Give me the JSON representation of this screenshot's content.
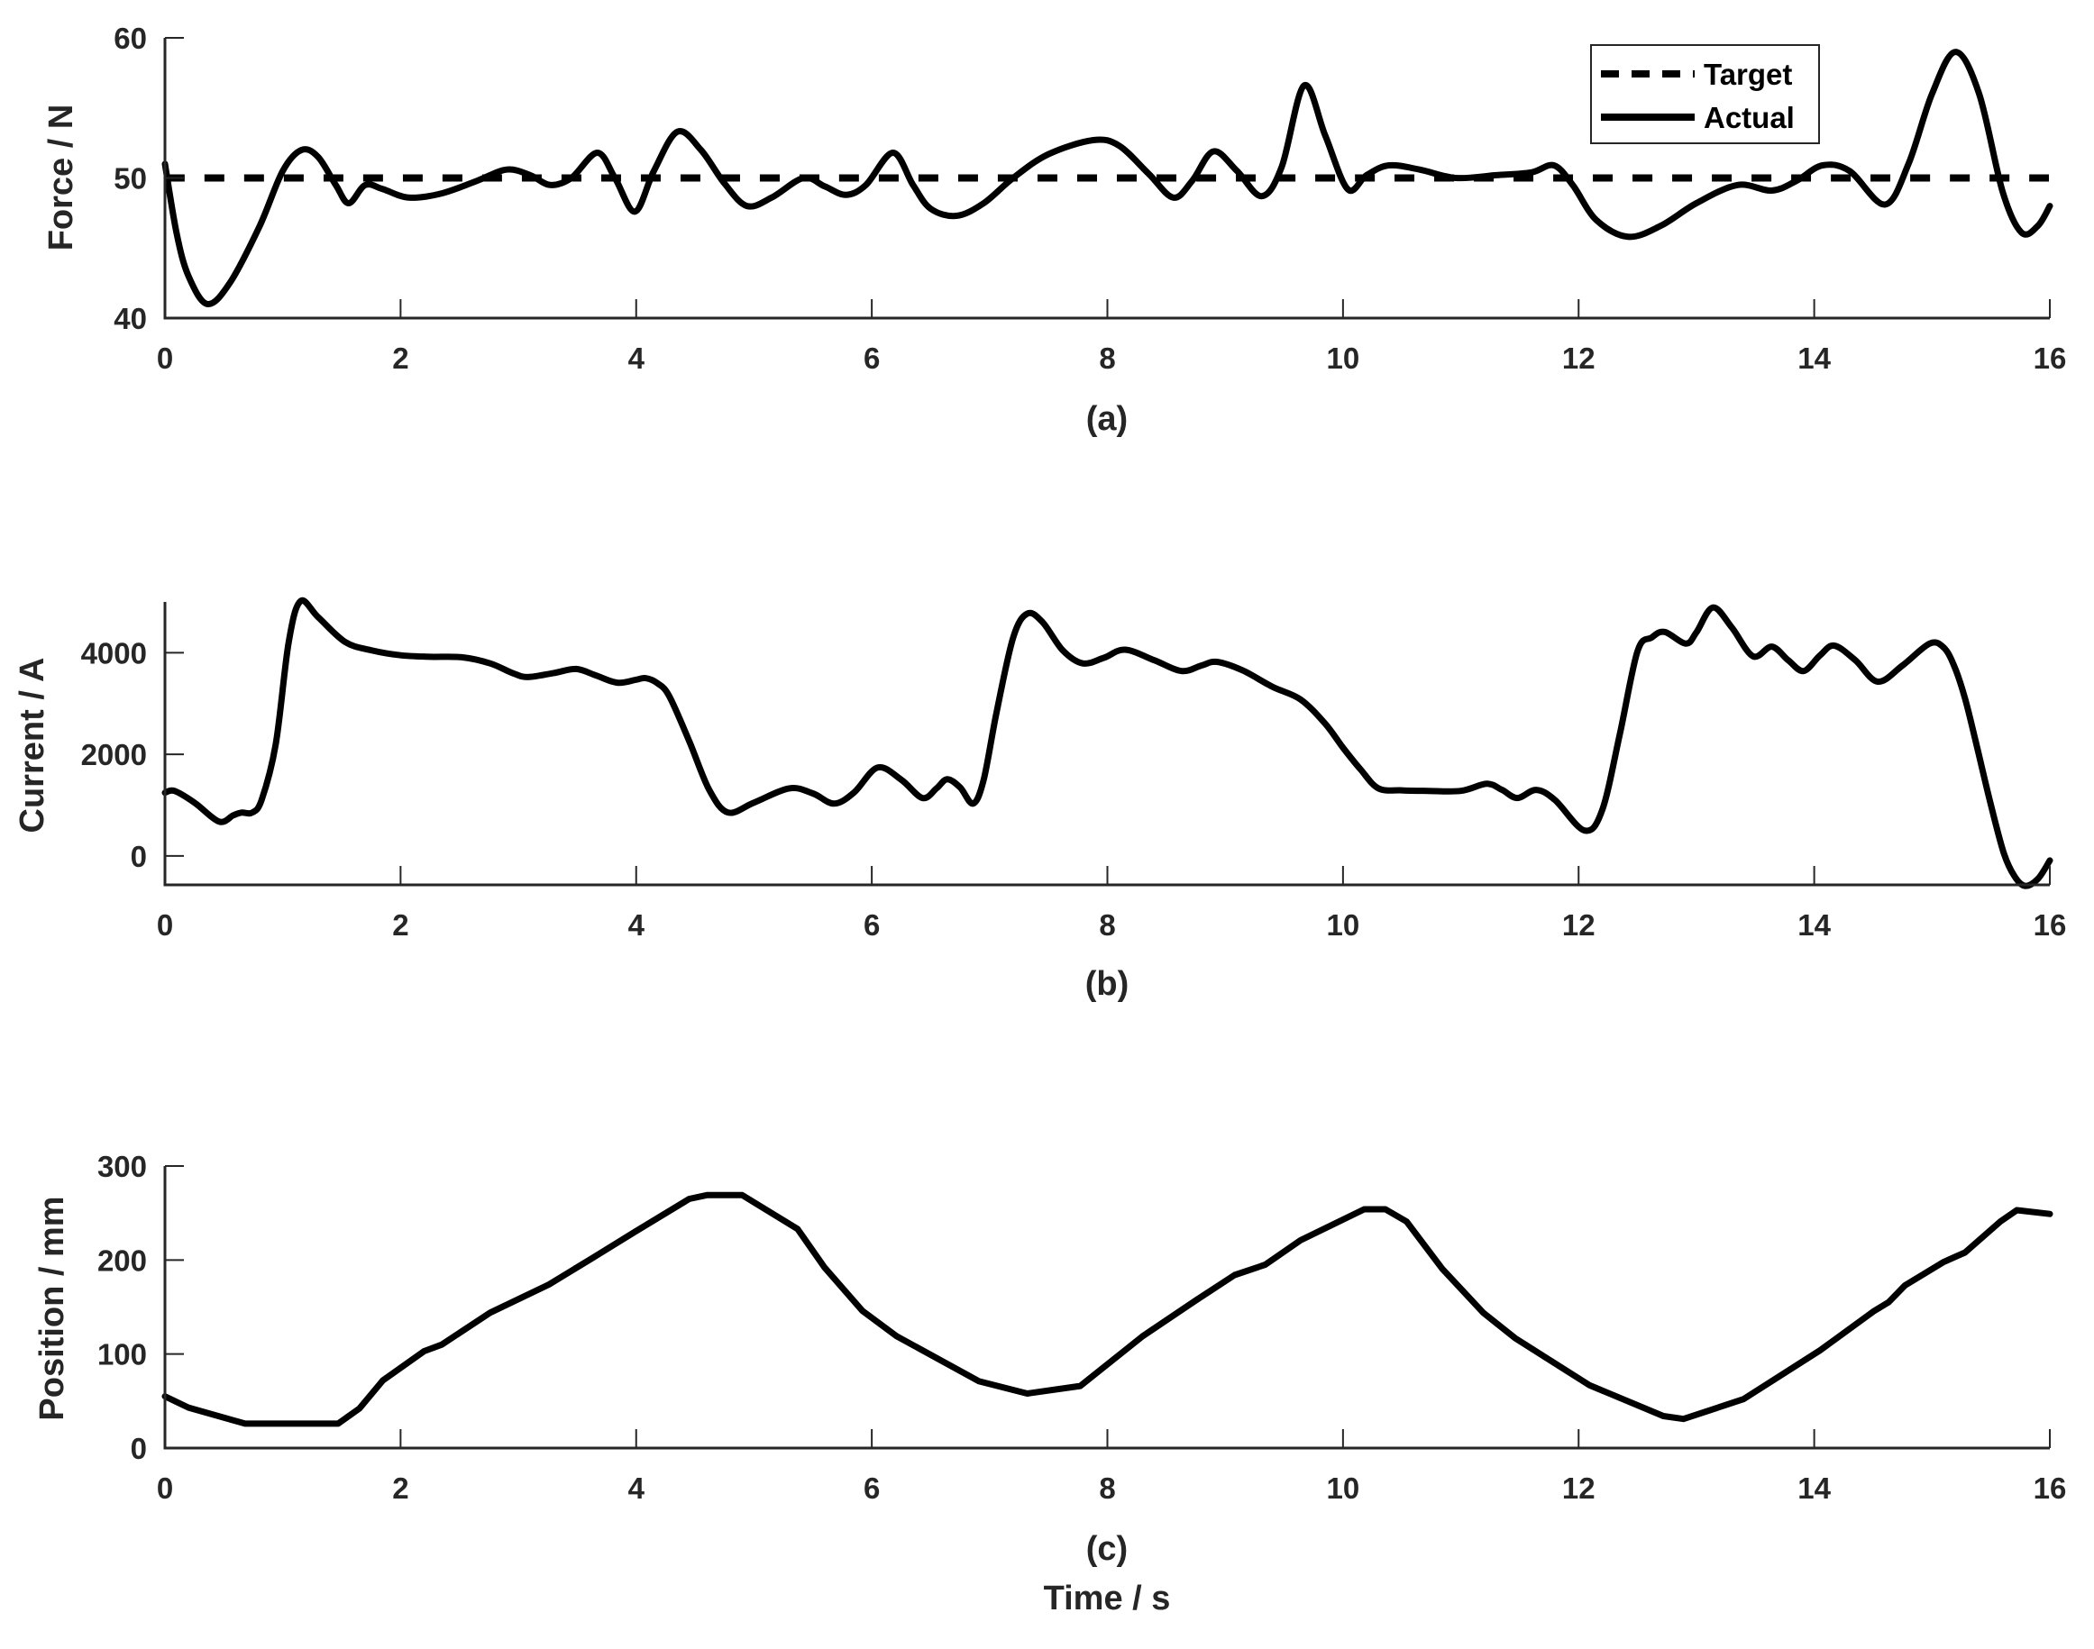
{
  "figure": {
    "x_axis_title": "Time / s"
  },
  "chart_data": [
    {
      "type": "line",
      "panel_label": "(a)",
      "title": "",
      "xlabel": "",
      "ylabel": "Force / N",
      "xlim": [
        0,
        16
      ],
      "ylim": [
        40,
        60
      ],
      "xticks": [
        0,
        2,
        4,
        6,
        8,
        10,
        12,
        14,
        16
      ],
      "yticks": [
        40,
        50,
        60
      ],
      "grid": false,
      "legend": {
        "position": "upper right",
        "entries": [
          "Target",
          "Actual"
        ]
      },
      "series": [
        {
          "name": "Target",
          "style": "dashed",
          "x": [
            0,
            16
          ],
          "values": [
            50,
            50
          ]
        },
        {
          "name": "Actual",
          "style": "solid",
          "x": [
            0,
            0.1,
            0.2,
            0.36,
            0.55,
            0.8,
            1.0,
            1.16,
            1.3,
            1.45,
            1.56,
            1.7,
            1.85,
            2.07,
            2.35,
            2.65,
            2.9,
            3.1,
            3.27,
            3.45,
            3.67,
            3.82,
            3.99,
            4.15,
            4.35,
            4.55,
            4.75,
            4.94,
            5.15,
            5.42,
            5.6,
            5.78,
            5.95,
            6.18,
            6.35,
            6.5,
            6.72,
            6.95,
            7.2,
            7.5,
            7.88,
            8.1,
            8.35,
            8.56,
            8.72,
            8.9,
            9.1,
            9.31,
            9.48,
            9.67,
            9.85,
            10.04,
            10.2,
            10.39,
            10.65,
            10.96,
            11.3,
            11.6,
            11.79,
            11.95,
            12.15,
            12.42,
            12.7,
            13.0,
            13.35,
            13.64,
            13.85,
            14.07,
            14.3,
            14.6,
            14.8,
            15.0,
            15.2,
            15.4,
            15.6,
            15.76,
            15.9,
            16.0
          ],
          "values": [
            51.0,
            46.0,
            43.0,
            41.0,
            42.5,
            46.5,
            50.5,
            52.0,
            51.5,
            49.5,
            48.2,
            49.5,
            49.2,
            48.6,
            48.9,
            49.8,
            50.6,
            50.2,
            49.5,
            50.0,
            51.8,
            50.0,
            47.6,
            50.5,
            53.3,
            52.0,
            49.6,
            48.0,
            48.6,
            50.0,
            49.4,
            48.8,
            49.5,
            51.8,
            49.5,
            47.8,
            47.3,
            48.2,
            50.0,
            51.7,
            52.7,
            52.3,
            50.3,
            48.6,
            49.8,
            51.9,
            50.5,
            48.7,
            50.8,
            56.6,
            53.0,
            49.2,
            50.2,
            50.9,
            50.6,
            50.0,
            50.2,
            50.4,
            50.9,
            49.5,
            47.0,
            45.8,
            46.6,
            48.2,
            49.5,
            49.1,
            49.8,
            50.9,
            50.5,
            48.1,
            51.0,
            56.0,
            59.0,
            56.0,
            49.0,
            46.1,
            46.6,
            48.0
          ]
        }
      ]
    },
    {
      "type": "line",
      "panel_label": "(b)",
      "title": "",
      "xlabel": "",
      "ylabel": "Current / A",
      "xlim": [
        0,
        16
      ],
      "ylim": [
        -570,
        5000
      ],
      "xticks": [
        0,
        2,
        4,
        6,
        8,
        10,
        12,
        14,
        16
      ],
      "yticks": [
        0,
        2000,
        4000
      ],
      "grid": false,
      "series": [
        {
          "name": "Current",
          "style": "solid",
          "x": [
            0,
            0.08,
            0.25,
            0.46,
            0.58,
            0.65,
            0.74,
            0.82,
            0.94,
            1.05,
            1.15,
            1.3,
            1.53,
            1.75,
            2.0,
            2.25,
            2.52,
            2.76,
            2.95,
            3.08,
            3.3,
            3.49,
            3.65,
            3.84,
            4.0,
            4.08,
            4.18,
            4.28,
            4.45,
            4.62,
            4.78,
            5.0,
            5.3,
            5.5,
            5.68,
            5.85,
            6.05,
            6.25,
            6.43,
            6.55,
            6.64,
            6.75,
            6.86,
            6.95,
            7.06,
            7.2,
            7.32,
            7.45,
            7.62,
            7.79,
            7.97,
            8.15,
            8.4,
            8.63,
            8.8,
            8.93,
            9.15,
            9.4,
            9.64,
            9.85,
            10.0,
            10.15,
            10.3,
            10.5,
            10.72,
            11.0,
            11.22,
            11.35,
            11.48,
            11.64,
            11.8,
            12.05,
            12.2,
            12.35,
            12.5,
            12.62,
            12.73,
            12.91,
            13.0,
            13.14,
            13.3,
            13.48,
            13.64,
            13.78,
            13.91,
            14.05,
            14.17,
            14.35,
            14.54,
            14.75,
            14.98,
            15.1,
            15.19,
            15.28,
            15.37,
            15.5,
            15.61,
            15.7,
            15.79,
            15.9,
            16.0
          ],
          "values": [
            1244,
            1280,
            1050,
            676,
            800,
            853,
            853,
            1100,
            2190,
            4200,
            5013,
            4700,
            4210,
            4050,
            3950,
            3920,
            3911,
            3790,
            3600,
            3520,
            3600,
            3680,
            3560,
            3410,
            3470,
            3500,
            3400,
            3150,
            2260,
            1300,
            855,
            1050,
            1330,
            1230,
            1030,
            1250,
            1740,
            1500,
            1140,
            1330,
            1510,
            1350,
            1030,
            1500,
            2840,
            4300,
            4770,
            4600,
            4050,
            3790,
            3900,
            4060,
            3850,
            3640,
            3750,
            3820,
            3650,
            3330,
            3080,
            2600,
            2130,
            1700,
            1330,
            1290,
            1280,
            1280,
            1420,
            1300,
            1140,
            1300,
            1100,
            500,
            900,
            2400,
            4030,
            4300,
            4410,
            4180,
            4400,
            4890,
            4500,
            3930,
            4120,
            3850,
            3640,
            3950,
            4140,
            3850,
            3430,
            3750,
            4180,
            4100,
            3730,
            3100,
            2260,
            1000,
            50,
            -400,
            -590,
            -450,
            -90
          ]
        }
      ]
    },
    {
      "type": "line",
      "panel_label": "(c)",
      "title": "",
      "xlabel": "Time / s",
      "ylabel": "Position / mm",
      "xlim": [
        0,
        16
      ],
      "ylim": [
        0,
        300
      ],
      "xticks": [
        0,
        2,
        4,
        6,
        8,
        10,
        12,
        14,
        16
      ],
      "yticks": [
        0,
        100,
        200,
        300
      ],
      "grid": false,
      "series": [
        {
          "name": "Position",
          "style": "solid",
          "x": [
            0,
            0.2,
            0.68,
            1.0,
            1.47,
            1.65,
            1.85,
            2.2,
            2.35,
            2.76,
            3.26,
            3.64,
            3.99,
            4.45,
            4.6,
            4.9,
            5.37,
            5.6,
            5.92,
            6.21,
            6.91,
            7.32,
            7.77,
            8.3,
            8.75,
            9.08,
            9.34,
            9.64,
            10.18,
            10.36,
            10.54,
            10.84,
            11.19,
            11.46,
            12.09,
            12.72,
            12.89,
            13.4,
            14.05,
            14.51,
            14.63,
            14.77,
            15.1,
            15.28,
            15.58,
            15.72,
            16.0
          ],
          "values": [
            55,
            43,
            26,
            26,
            26,
            42,
            72,
            103,
            110,
            144,
            174,
            203,
            230,
            265,
            269,
            269,
            233,
            192,
            146,
            119,
            71,
            58,
            66,
            119,
            157,
            184,
            195,
            221,
            254,
            254,
            241,
            191,
            144,
            117,
            67,
            34,
            31,
            52,
            104,
            146,
            155,
            173,
            198,
            208,
            241,
            253,
            249
          ]
        }
      ]
    }
  ]
}
